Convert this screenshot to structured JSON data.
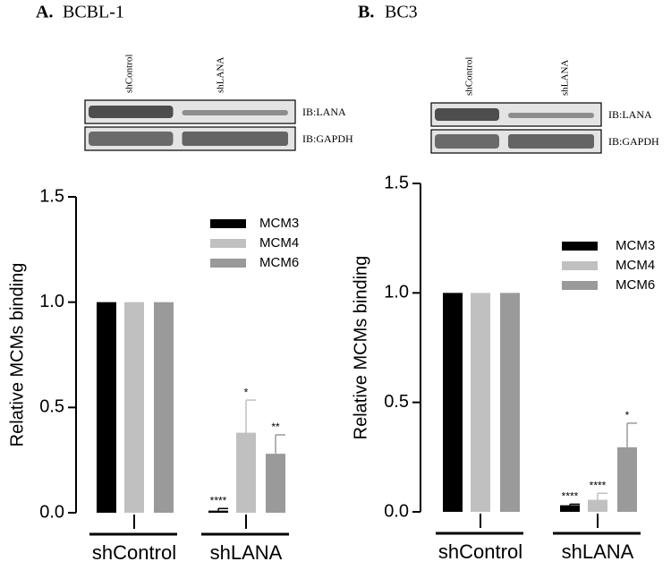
{
  "chart_data": [
    {
      "type": "bar",
      "panel": "A.",
      "title": "BCBL-1",
      "blot": {
        "lanes": [
          "shControl",
          "shLANA"
        ],
        "rows": [
          "IB:LANA",
          "IB:GAPDH"
        ]
      },
      "y_label": "Relative MCMs binding",
      "categories": [
        "shControl",
        "shLANA"
      ],
      "series": [
        {
          "name": "MCM3",
          "color": "#000000",
          "values": [
            1,
            0.01
          ],
          "errors": [
            null,
            0.01
          ],
          "significance": [
            null,
            "****"
          ]
        },
        {
          "name": "MCM4",
          "color": "#c0c0c0",
          "values": [
            1,
            0.38
          ],
          "errors": [
            null,
            0.155
          ],
          "significance": [
            null,
            "*"
          ]
        },
        {
          "name": "MCM6",
          "color": "#9a9a9a",
          "values": [
            1,
            0.28
          ],
          "errors": [
            null,
            0.09
          ],
          "significance": [
            null,
            "**"
          ]
        }
      ],
      "ylim": [
        0,
        1.5
      ],
      "yticks": [
        {
          "value": 0,
          "label": "0.0"
        },
        0.5,
        {
          "value": 1,
          "label": "1.0"
        },
        1.5
      ]
    },
    {
      "type": "bar",
      "panel": "B.",
      "title": "BC3",
      "blot": {
        "lanes": [
          "shControl",
          "shLANA"
        ],
        "rows": [
          "IB:LANA",
          "IB:GAPDH"
        ]
      },
      "y_label": "Relative MCMs binding",
      "categories": [
        "shControl",
        "shLANA"
      ],
      "series": [
        {
          "name": "MCM3",
          "color": "#000000",
          "values": [
            1,
            0.03
          ],
          "errors": [
            null,
            0.005
          ],
          "significance": [
            null,
            "****"
          ]
        },
        {
          "name": "MCM4",
          "color": "#c0c0c0",
          "values": [
            1,
            0.055
          ],
          "errors": [
            null,
            0.03
          ],
          "significance": [
            null,
            "****"
          ]
        },
        {
          "name": "MCM6",
          "color": "#9a9a9a",
          "values": [
            1,
            0.295
          ],
          "errors": [
            null,
            0.11
          ],
          "significance": [
            null,
            "*"
          ]
        }
      ],
      "ylim": [
        0,
        1.5
      ],
      "yticks": [
        {
          "value": 0,
          "label": "0.0"
        },
        0.5,
        {
          "value": 1,
          "label": "1.0"
        },
        1.5
      ]
    }
  ]
}
